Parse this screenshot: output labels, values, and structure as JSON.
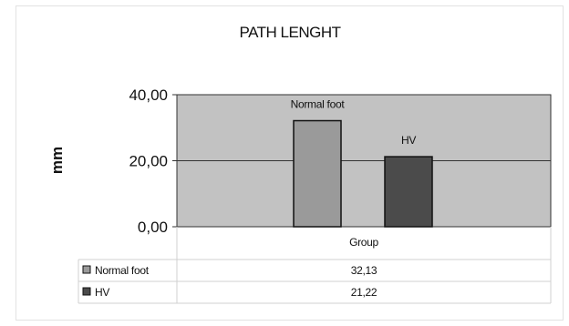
{
  "chart_data": {
    "type": "bar",
    "title": "PATH LENGHT",
    "ylabel": "mm",
    "ylim": [
      0,
      40
    ],
    "yticks": [
      "0,00",
      "20,00",
      "40,00"
    ],
    "category": "Group",
    "grid": true,
    "legend": "data-table",
    "series": [
      {
        "name": "Normal foot",
        "value": 32.13,
        "display": "32,13",
        "color": "#9a9a9a"
      },
      {
        "name": "HV",
        "value": 21.22,
        "display": "21,22",
        "color": "#4b4b4b"
      }
    ],
    "plot_background": "#c2c2c2"
  }
}
